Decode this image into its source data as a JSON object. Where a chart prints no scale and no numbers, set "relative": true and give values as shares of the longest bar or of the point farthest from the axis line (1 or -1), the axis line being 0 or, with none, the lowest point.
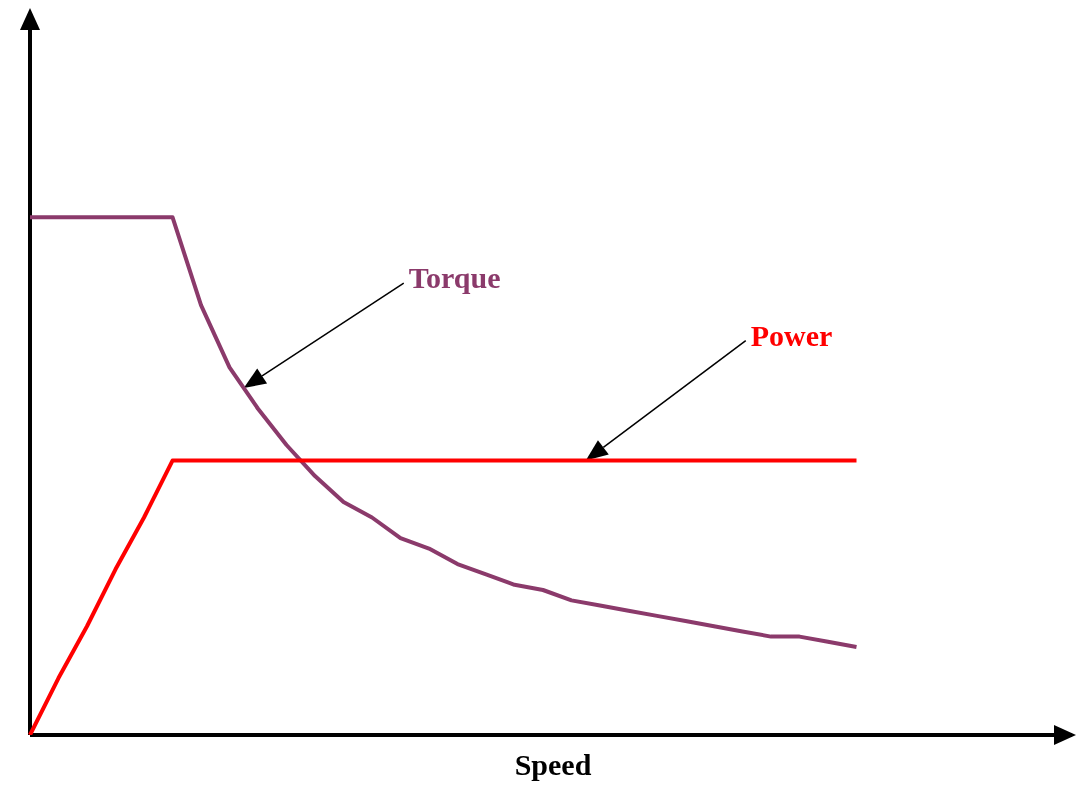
{
  "chart_data": {
    "type": "line",
    "relative": true,
    "xlabel": "Speed",
    "legend": false,
    "tick_labels": false,
    "grid": false,
    "marker": "none",
    "categories": [
      null,
      null,
      null,
      null,
      null,
      null,
      null,
      null,
      null,
      null,
      null,
      null,
      null,
      null,
      null,
      null,
      null,
      null,
      null,
      null,
      null,
      null,
      null,
      null,
      null,
      null,
      null,
      null,
      null,
      null
    ],
    "series": [
      {
        "name": "Torque",
        "color": "#8b3a6b",
        "values": [
          1,
          1,
          1,
          1,
          1,
          1,
          0.83,
          0.71,
          0.63,
          0.56,
          0.5,
          0.45,
          0.42,
          0.38,
          0.36,
          0.33,
          0.31,
          0.29,
          0.28,
          0.26,
          0.25,
          0.24,
          0.23,
          0.22,
          0.21,
          0.2,
          0.19,
          0.19,
          0.18,
          0.17
        ]
      },
      {
        "name": "Power",
        "color": "#ff0000",
        "values": [
          0,
          0.11,
          0.21,
          0.32,
          0.42,
          0.53,
          0.53,
          0.53,
          0.53,
          0.53,
          0.53,
          0.53,
          0.53,
          0.53,
          0.53,
          0.53,
          0.53,
          0.53,
          0.53,
          0.53,
          0.53,
          0.53,
          0.53,
          0.53,
          0.53,
          0.53,
          0.53,
          0.53,
          0.53,
          0.53
        ]
      }
    ]
  }
}
